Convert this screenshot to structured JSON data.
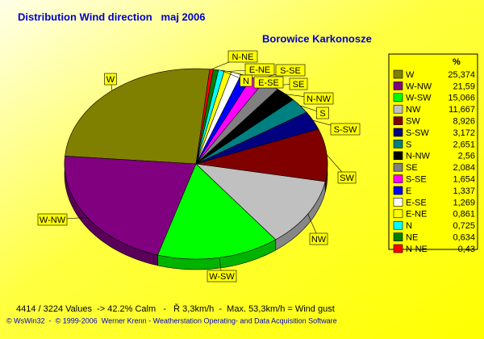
{
  "chart_data": {
    "type": "pie",
    "title": "Distribution Wind direction   maj 2006",
    "subtitle": "Borowice Karkonosze",
    "value_unit": "%",
    "categories": [
      "W",
      "W-NW",
      "W-SW",
      "NW",
      "SW",
      "S-SW",
      "S",
      "N-NW",
      "SE",
      "S-SE",
      "E",
      "E-SE",
      "E-NE",
      "N",
      "NE",
      "N-NE"
    ],
    "values": [
      25.374,
      21.59,
      15.066,
      11.667,
      8.926,
      3.172,
      2.651,
      2.56,
      2.084,
      1.654,
      1.337,
      1.269,
      0.861,
      0.725,
      0.634,
      0.43
    ],
    "value_labels": [
      "25,374",
      "21,59",
      "15,066",
      "11,667",
      "8,926",
      "3,172",
      "2,651",
      "2,56",
      "2,084",
      "1,654",
      "1,337",
      "1,269",
      "0,861",
      "0,725",
      "0,634",
      "0,43"
    ],
    "colors": [
      "#808000",
      "#800080",
      "#00ff00",
      "#c0c0c0",
      "#800000",
      "#000080",
      "#008080",
      "#000000",
      "#808080",
      "#ff00ff",
      "#0000ff",
      "#ffffff",
      "#ffff00",
      "#00ffff",
      "#008000",
      "#ff0000"
    ],
    "legend_corner": "right",
    "footer": "4414 / 3224 Values  -> 42.2% Calm   -   Ř 3,3km/h  -  Max. 53,3km/h = Wind gust",
    "credit": "© WsWin32  -  © 1999-2006  Werner Krenn - Weatherstation Operating- and Data Acquisition Software"
  }
}
